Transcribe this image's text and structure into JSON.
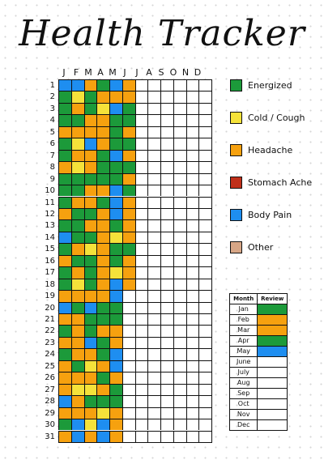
{
  "title": "Health Tracker",
  "months": [
    "J",
    "F",
    "M",
    "A",
    "M",
    "J",
    "J",
    "A",
    "S",
    "O",
    "N",
    "D"
  ],
  "days": [
    "1",
    "2",
    "3",
    "4",
    "5",
    "6",
    "7",
    "8",
    "9",
    "10",
    "11",
    "12",
    "13",
    "14",
    "15",
    "16",
    "17",
    "18",
    "19",
    "20",
    "21",
    "22",
    "23",
    "24",
    "25",
    "26",
    "27",
    "28",
    "29",
    "30",
    "31"
  ],
  "colors": {
    "G": "#1c9a3a",
    "Y": "#f5e23a",
    "O": "#f6a10f",
    "R": "#c0301a",
    "B": "#1e8ef0",
    "T": "#d7a686",
    "": "#ffffff"
  },
  "legend": [
    {
      "key": "G",
      "label": "Energized"
    },
    {
      "key": "Y",
      "label": "Cold / Cough"
    },
    {
      "key": "O",
      "label": "Headache"
    },
    {
      "key": "R",
      "label": "Stomach Ache"
    },
    {
      "key": "B",
      "label": "Body Pain"
    },
    {
      "key": "T",
      "label": "Other"
    }
  ],
  "grid": [
    [
      "B",
      "B",
      "O",
      "G",
      "B",
      "O"
    ],
    [
      "G",
      "Y",
      "G",
      "O",
      "O",
      "O"
    ],
    [
      "G",
      "O",
      "G",
      "Y",
      "B",
      "G"
    ],
    [
      "G",
      "G",
      "O",
      "O",
      "G",
      "G"
    ],
    [
      "O",
      "O",
      "O",
      "O",
      "G",
      "O"
    ],
    [
      "G",
      "Y",
      "B",
      "O",
      "G",
      "G"
    ],
    [
      "G",
      "O",
      "O",
      "G",
      "B",
      "O"
    ],
    [
      "O",
      "Y",
      "O",
      "G",
      "G",
      "G"
    ],
    [
      "G",
      "G",
      "G",
      "G",
      "G",
      "O"
    ],
    [
      "G",
      "G",
      "O",
      "O",
      "B",
      "G"
    ],
    [
      "G",
      "O",
      "O",
      "G",
      "B",
      "O"
    ],
    [
      "O",
      "G",
      "G",
      "O",
      "B",
      "O"
    ],
    [
      "G",
      "G",
      "O",
      "O",
      "G",
      "O"
    ],
    [
      "B",
      "G",
      "G",
      "O",
      "Y",
      "O"
    ],
    [
      "G",
      "O",
      "Y",
      "O",
      "G",
      "G"
    ],
    [
      "O",
      "G",
      "G",
      "O",
      "G",
      "O"
    ],
    [
      "G",
      "O",
      "G",
      "O",
      "Y",
      "O"
    ],
    [
      "G",
      "Y",
      "G",
      "O",
      "B",
      "O"
    ],
    [
      "O",
      "O",
      "O",
      "O",
      "B",
      ""
    ],
    [
      "B",
      "G",
      "B",
      "G",
      "G",
      ""
    ],
    [
      "O",
      "O",
      "G",
      "G",
      "G",
      ""
    ],
    [
      "G",
      "O",
      "G",
      "O",
      "O",
      ""
    ],
    [
      "O",
      "O",
      "B",
      "G",
      "O",
      ""
    ],
    [
      "G",
      "O",
      "O",
      "G",
      "B",
      ""
    ],
    [
      "O",
      "G",
      "Y",
      "O",
      "B",
      ""
    ],
    [
      "O",
      "O",
      "O",
      "G",
      "O",
      ""
    ],
    [
      "O",
      "Y",
      "Y",
      "O",
      "G",
      ""
    ],
    [
      "B",
      "O",
      "G",
      "G",
      "G",
      ""
    ],
    [
      "O",
      "O",
      "O",
      "Y",
      "O",
      ""
    ],
    [
      "G",
      "B",
      "Y",
      "B",
      "O",
      ""
    ],
    [
      "O",
      "B",
      "O",
      "B",
      "O",
      ""
    ]
  ],
  "review": {
    "header_month": "Month",
    "header_review": "Review",
    "rows": [
      {
        "month": "Jan",
        "color": "G"
      },
      {
        "month": "Feb",
        "color": "O"
      },
      {
        "month": "Mar",
        "color": "O"
      },
      {
        "month": "Apr",
        "color": "G"
      },
      {
        "month": "May",
        "color": "B"
      },
      {
        "month": "June",
        "color": ""
      },
      {
        "month": "July",
        "color": ""
      },
      {
        "month": "Aug",
        "color": ""
      },
      {
        "month": "Sep",
        "color": ""
      },
      {
        "month": "Oct",
        "color": ""
      },
      {
        "month": "Nov",
        "color": ""
      },
      {
        "month": "Dec",
        "color": ""
      }
    ]
  }
}
